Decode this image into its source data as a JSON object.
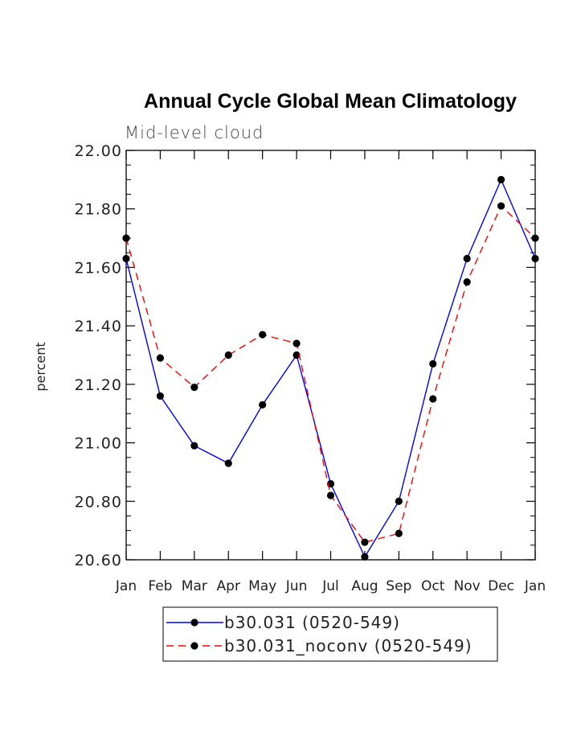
{
  "chart_data": {
    "type": "line",
    "title": "Annual Cycle Global Mean Climatology",
    "subtitle": "Mid-level cloud",
    "xlabel": "",
    "ylabel": "percent",
    "categories": [
      "Jan",
      "Feb",
      "Mar",
      "Apr",
      "May",
      "Jun",
      "Jul",
      "Aug",
      "Sep",
      "Oct",
      "Nov",
      "Dec",
      "Jan"
    ],
    "ylim": [
      20.6,
      22.0
    ],
    "yticks": [
      "20.60",
      "20.80",
      "21.00",
      "21.20",
      "21.40",
      "21.60",
      "21.80",
      "22.00"
    ],
    "ytick_values": [
      20.6,
      20.8,
      21.0,
      21.2,
      21.4,
      21.6,
      21.8,
      22.0
    ],
    "grid": false,
    "legend_position": "bottom",
    "series": [
      {
        "name": "b30.031 (0520-549)",
        "color": "#0000ff",
        "dash": "solid",
        "values": [
          21.63,
          21.16,
          20.99,
          20.93,
          21.13,
          21.3,
          20.86,
          20.61,
          20.8,
          21.27,
          21.63,
          21.9,
          21.63
        ]
      },
      {
        "name": "b30.031_noconv (0520-549)",
        "color": "#ff0000",
        "dash": "dashed",
        "values": [
          21.7,
          21.29,
          21.19,
          21.3,
          21.37,
          21.34,
          20.82,
          20.66,
          20.69,
          21.15,
          21.55,
          21.81,
          21.7
        ]
      }
    ]
  }
}
